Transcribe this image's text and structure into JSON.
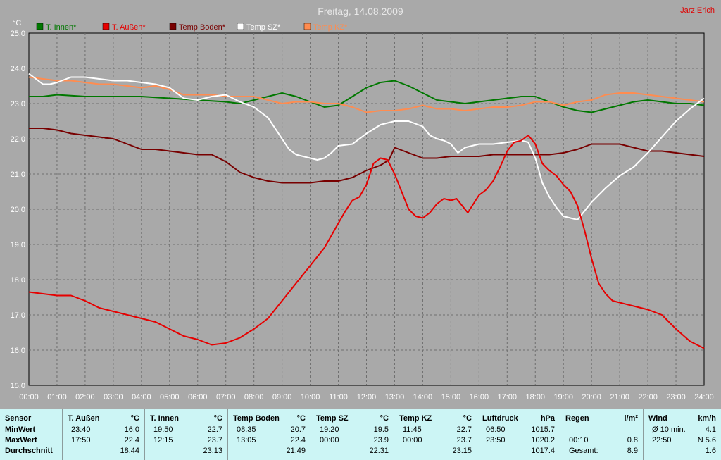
{
  "chart_data": {
    "type": "line",
    "title": "Freitag, 14.08.2009",
    "author": "Jarz Erich",
    "ylabel": "°C",
    "xlabel": "",
    "ylim": [
      15.0,
      25.0
    ],
    "xlim": [
      0,
      24
    ],
    "grid": true,
    "legend_position": "top",
    "yticks": [
      "15.0",
      "16.0",
      "17.0",
      "18.0",
      "19.0",
      "20.0",
      "21.0",
      "22.0",
      "23.0",
      "24.0",
      "25.0"
    ],
    "xticks": [
      "00:00",
      "01:00",
      "02:00",
      "03:00",
      "04:00",
      "05:00",
      "06:00",
      "07:00",
      "08:00",
      "09:00",
      "10:00",
      "11:00",
      "12:00",
      "13:00",
      "14:00",
      "15:00",
      "16:00",
      "17:00",
      "18:00",
      "19:00",
      "20:00",
      "21:00",
      "22:00",
      "23:00",
      "24:00"
    ],
    "series": [
      {
        "name": "T. Innen*",
        "color": "#007800",
        "x": [
          0,
          0.5,
          1,
          2,
          3,
          4,
          5,
          6,
          7,
          7.5,
          8,
          8.5,
          9,
          9.5,
          10,
          10.5,
          11,
          11.5,
          12,
          12.5,
          13,
          13.5,
          14,
          14.5,
          15,
          15.5,
          16,
          16.5,
          17,
          17.5,
          18,
          18.5,
          19,
          19.5,
          20,
          20.5,
          21,
          21.5,
          22,
          22.5,
          23,
          23.5,
          24
        ],
        "y": [
          23.2,
          23.2,
          23.25,
          23.2,
          23.2,
          23.2,
          23.15,
          23.1,
          23.05,
          23.0,
          23.1,
          23.2,
          23.3,
          23.2,
          23.05,
          22.9,
          22.95,
          23.2,
          23.45,
          23.6,
          23.65,
          23.5,
          23.3,
          23.1,
          23.05,
          23.0,
          23.05,
          23.1,
          23.15,
          23.2,
          23.2,
          23.05,
          22.9,
          22.8,
          22.75,
          22.85,
          22.95,
          23.05,
          23.1,
          23.05,
          23.0,
          23.0,
          22.95
        ]
      },
      {
        "name": "T. Außen*",
        "color": "#e60000",
        "x": [
          0,
          0.5,
          1,
          1.5,
          2,
          2.5,
          3,
          3.5,
          4,
          4.5,
          5,
          5.5,
          6,
          6.5,
          7,
          7.5,
          8,
          8.5,
          9,
          9.5,
          10,
          10.5,
          11,
          11.25,
          11.5,
          11.75,
          12,
          12.25,
          12.5,
          12.75,
          13,
          13.25,
          13.5,
          13.75,
          14,
          14.25,
          14.5,
          14.75,
          15,
          15.2,
          15.4,
          15.6,
          15.8,
          16,
          16.25,
          16.5,
          16.75,
          17,
          17.25,
          17.5,
          17.75,
          18,
          18.25,
          18.5,
          18.75,
          19,
          19.25,
          19.5,
          19.75,
          20,
          20.25,
          20.5,
          20.75,
          21,
          21.5,
          22,
          22.5,
          23,
          23.5,
          24
        ],
        "y": [
          17.65,
          17.6,
          17.55,
          17.55,
          17.4,
          17.2,
          17.1,
          17.0,
          16.9,
          16.8,
          16.6,
          16.4,
          16.3,
          16.15,
          16.2,
          16.35,
          16.6,
          16.9,
          17.4,
          17.9,
          18.4,
          18.9,
          19.6,
          19.95,
          20.25,
          20.35,
          20.7,
          21.3,
          21.45,
          21.4,
          21.0,
          20.5,
          20.0,
          19.8,
          19.75,
          19.9,
          20.15,
          20.3,
          20.25,
          20.3,
          20.1,
          19.9,
          20.15,
          20.4,
          20.55,
          20.8,
          21.2,
          21.65,
          21.9,
          21.95,
          22.1,
          21.85,
          21.3,
          21.1,
          20.95,
          20.7,
          20.5,
          20.1,
          19.4,
          18.6,
          17.9,
          17.6,
          17.4,
          17.35,
          17.25,
          17.15,
          17.0,
          16.6,
          16.25,
          16.05
        ]
      },
      {
        "name": "Temp Boden*",
        "color": "#780000",
        "x": [
          0,
          0.5,
          1,
          1.5,
          2,
          2.5,
          3,
          3.5,
          4,
          4.5,
          5,
          5.5,
          6,
          6.5,
          7,
          7.5,
          8,
          8.5,
          9,
          9.5,
          10,
          10.5,
          11,
          11.5,
          12,
          12.5,
          12.8,
          13,
          13.5,
          14,
          14.5,
          15,
          15.5,
          16,
          16.5,
          17,
          17.5,
          18,
          18.5,
          19,
          19.5,
          20,
          20.5,
          21,
          21.5,
          22,
          22.5,
          23,
          23.5,
          24
        ],
        "y": [
          22.3,
          22.3,
          22.25,
          22.15,
          22.1,
          22.05,
          22.0,
          21.85,
          21.7,
          21.7,
          21.65,
          21.6,
          21.55,
          21.55,
          21.35,
          21.05,
          20.9,
          20.8,
          20.75,
          20.75,
          20.75,
          20.8,
          20.8,
          20.9,
          21.1,
          21.25,
          21.4,
          21.75,
          21.6,
          21.45,
          21.45,
          21.5,
          21.5,
          21.5,
          21.55,
          21.55,
          21.55,
          21.55,
          21.55,
          21.6,
          21.7,
          21.85,
          21.85,
          21.85,
          21.75,
          21.65,
          21.65,
          21.6,
          21.55,
          21.5
        ]
      },
      {
        "name": "Temp SZ*",
        "color": "#ffffff",
        "x": [
          0,
          0.25,
          0.5,
          0.75,
          1,
          1.5,
          2,
          2.5,
          3,
          3.5,
          4,
          4.5,
          5,
          5.5,
          6,
          6.5,
          7,
          7.5,
          8,
          8.5,
          9,
          9.25,
          9.5,
          9.75,
          10,
          10.25,
          10.5,
          10.75,
          11,
          11.5,
          12,
          12.5,
          13,
          13.5,
          14,
          14.25,
          14.5,
          14.75,
          15,
          15.25,
          15.5,
          15.75,
          16,
          16.5,
          17,
          17.5,
          17.75,
          18,
          18.25,
          18.5,
          18.75,
          19,
          19.25,
          19.5,
          19.75,
          20,
          20.5,
          21,
          21.5,
          22,
          22.5,
          23,
          23.5,
          24
        ],
        "y": [
          23.85,
          23.7,
          23.55,
          23.55,
          23.6,
          23.75,
          23.75,
          23.7,
          23.65,
          23.65,
          23.6,
          23.55,
          23.45,
          23.15,
          23.1,
          23.2,
          23.25,
          23.05,
          22.9,
          22.6,
          22.0,
          21.7,
          21.55,
          21.5,
          21.45,
          21.4,
          21.45,
          21.6,
          21.8,
          21.85,
          22.15,
          22.4,
          22.5,
          22.5,
          22.35,
          22.1,
          22.0,
          21.95,
          21.85,
          21.6,
          21.75,
          21.8,
          21.85,
          21.85,
          21.9,
          21.95,
          21.9,
          21.45,
          20.75,
          20.35,
          20.05,
          19.8,
          19.75,
          19.7,
          19.95,
          20.2,
          20.6,
          20.95,
          21.2,
          21.6,
          22.05,
          22.5,
          22.85,
          23.15
        ]
      },
      {
        "name": "Temp KZ*",
        "color": "#ff8c50",
        "x": [
          0,
          0.5,
          1,
          1.5,
          2,
          2.5,
          3,
          3.5,
          4,
          4.5,
          5,
          5.5,
          6,
          6.5,
          7,
          7.5,
          8,
          8.5,
          9,
          9.5,
          10,
          10.5,
          11,
          11.5,
          12,
          12.5,
          13,
          13.5,
          14,
          14.5,
          15,
          15.5,
          16,
          16.5,
          17,
          17.5,
          18,
          18.5,
          19,
          19.5,
          20,
          20.5,
          21,
          21.5,
          22,
          22.5,
          23,
          23.5,
          24
        ],
        "y": [
          23.75,
          23.7,
          23.65,
          23.65,
          23.6,
          23.55,
          23.55,
          23.5,
          23.45,
          23.5,
          23.4,
          23.25,
          23.25,
          23.25,
          23.2,
          23.2,
          23.2,
          23.1,
          23.0,
          23.05,
          23.05,
          23.0,
          23.0,
          22.9,
          22.75,
          22.8,
          22.8,
          22.85,
          22.95,
          22.85,
          22.85,
          22.8,
          22.85,
          22.9,
          22.9,
          22.95,
          23.05,
          23.05,
          22.95,
          23.05,
          23.1,
          23.25,
          23.3,
          23.3,
          23.25,
          23.2,
          23.15,
          23.1,
          23.05
        ]
      }
    ]
  },
  "table": {
    "columns": [
      {
        "title": "Sensor",
        "unit": "",
        "rows": [
          {
            "time": "MinWert",
            "value": ""
          },
          {
            "time": "MaxWert",
            "value": ""
          },
          {
            "time": "Durchschnitt",
            "value": ""
          }
        ]
      },
      {
        "title": "T. Außen",
        "unit": "°C",
        "rows": [
          {
            "time": "23:40",
            "value": "16.0"
          },
          {
            "time": "17:50",
            "value": "22.4"
          },
          {
            "time": "",
            "value": "18.44"
          }
        ]
      },
      {
        "title": "T. Innen",
        "unit": "°C",
        "rows": [
          {
            "time": "19:50",
            "value": "22.7"
          },
          {
            "time": "12:15",
            "value": "23.7"
          },
          {
            "time": "",
            "value": "23.13"
          }
        ]
      },
      {
        "title": "Temp Boden",
        "unit": "°C",
        "rows": [
          {
            "time": "08:35",
            "value": "20.7"
          },
          {
            "time": "13:05",
            "value": "22.4"
          },
          {
            "time": "",
            "value": "21.49"
          }
        ]
      },
      {
        "title": "Temp SZ",
        "unit": "°C",
        "rows": [
          {
            "time": "19:20",
            "value": "19.5"
          },
          {
            "time": "00:00",
            "value": "23.9"
          },
          {
            "time": "",
            "value": "22.31"
          }
        ]
      },
      {
        "title": "Temp KZ",
        "unit": "°C",
        "rows": [
          {
            "time": "11:45",
            "value": "22.7"
          },
          {
            "time": "00:00",
            "value": "23.7"
          },
          {
            "time": "",
            "value": "23.15"
          }
        ]
      },
      {
        "title": "Luftdruck",
        "unit": "hPa",
        "rows": [
          {
            "time": "06:50",
            "value": "1015.7"
          },
          {
            "time": "23:50",
            "value": "1020.2"
          },
          {
            "time": "",
            "value": "1017.4"
          }
        ]
      },
      {
        "title": "Regen",
        "unit": "l/m²",
        "rows": [
          {
            "time": "",
            "value": ""
          },
          {
            "time": "00:10",
            "value": "0.8"
          },
          {
            "time": "Gesamt:",
            "value": "8.9"
          }
        ]
      },
      {
        "title": "Wind",
        "unit": "km/h",
        "rows": [
          {
            "time": "Ø 10 min.",
            "value": "4.1"
          },
          {
            "time": "22:50",
            "value": "N 5.6"
          },
          {
            "time": "",
            "value": "1.6"
          }
        ]
      }
    ]
  }
}
